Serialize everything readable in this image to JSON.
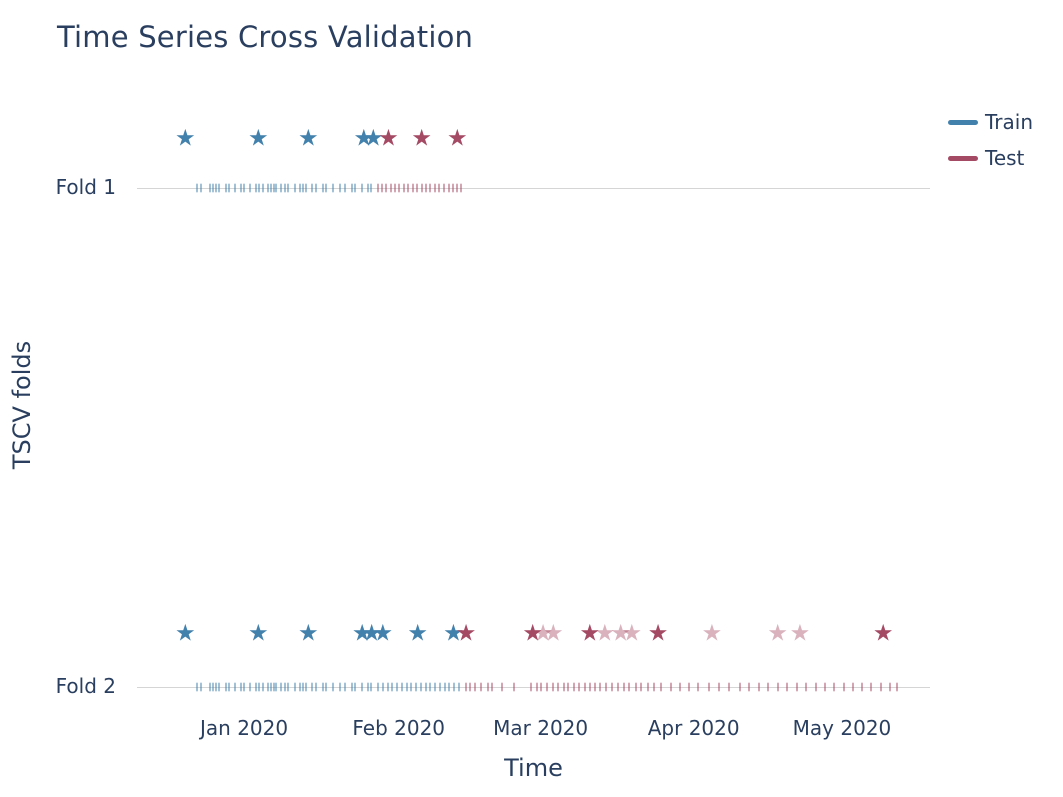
{
  "chart_data": {
    "type": "scatter",
    "title": "Time Series Cross Validation",
    "xlabel": "Time",
    "ylabel": "TSCV folds",
    "grid": false,
    "legend_position": "top-right",
    "x_axis": {
      "range": [
        "2019-12-11",
        "2020-05-18"
      ],
      "ticks": [
        {
          "label": "Jan 2020",
          "pos": 13.5
        },
        {
          "label": "Feb 2020",
          "pos": 33.0
        },
        {
          "label": "Mar 2020",
          "pos": 50.9
        },
        {
          "label": "Apr 2020",
          "pos": 70.2
        },
        {
          "label": "May 2020",
          "pos": 88.9
        }
      ]
    },
    "y_categories": [
      "Fold 1",
      "Fold 2"
    ],
    "legend": [
      {
        "label": "Train",
        "color": "#4381ad"
      },
      {
        "label": "Test",
        "color": "#a54a64"
      }
    ],
    "colors": {
      "train": "#4381ad",
      "test": "#a54a64",
      "text": "#2a3f5f",
      "axis_line": "#d5d5d5"
    },
    "folds": [
      {
        "label": "Fold 1",
        "train": {
          "window": [
            "2019-12-23",
            "2020-01-27"
          ],
          "stars": [
            {
              "date": "2019-12-21",
              "pos": 6.1
            },
            {
              "date": "2020-01-04",
              "pos": 15.3
            },
            {
              "date": "2020-01-14",
              "pos": 21.6
            },
            {
              "date": "2020-01-25",
              "pos": 28.6
            },
            {
              "date": "2020-01-27",
              "pos": 29.8
            }
          ],
          "rug": [
            7.6,
            8.1,
            9.2,
            9.6,
            10.0,
            10.3,
            11.2,
            11.6,
            12.4,
            13.1,
            13.5,
            14.2,
            15.0,
            15.4,
            15.9,
            16.5,
            16.9,
            17.3,
            17.5,
            18.2,
            18.7,
            19.0,
            19.9,
            20.6,
            20.9,
            21.3,
            22.1,
            22.6,
            23.5,
            23.8,
            24.7,
            25.6,
            26.2,
            27.1,
            27.5,
            28.4,
            29.1,
            29.5
          ]
        },
        "test": {
          "window": [
            "2020-01-28",
            "2020-02-14"
          ],
          "stars": [
            {
              "date": "2020-01-30",
              "pos": 31.7
            },
            {
              "date": "2020-02-06",
              "pos": 35.9
            },
            {
              "date": "2020-02-13",
              "pos": 40.4
            }
          ],
          "rug": [
            30.4,
            30.9,
            31.4,
            32.0,
            32.5,
            33.1,
            33.7,
            34.2,
            34.8,
            35.3,
            35.9,
            36.5,
            37.0,
            37.6,
            38.1,
            38.7,
            39.3,
            39.8,
            40.4,
            40.9
          ]
        }
      },
      {
        "label": "Fold 2",
        "train": {
          "window": [
            "2019-12-23",
            "2020-02-14"
          ],
          "stars": [
            {
              "date": "2019-12-21",
              "pos": 6.1
            },
            {
              "date": "2020-01-04",
              "pos": 15.3
            },
            {
              "date": "2020-01-14",
              "pos": 21.6
            },
            {
              "date": "2020-01-25",
              "pos": 28.4
            },
            {
              "date": "2020-01-27",
              "pos": 29.6
            },
            {
              "date": "2020-01-29",
              "pos": 31.0
            },
            {
              "date": "2020-02-05",
              "pos": 35.4
            },
            {
              "date": "2020-02-13",
              "pos": 39.9
            }
          ],
          "rug": [
            7.6,
            8.1,
            9.2,
            9.6,
            10.0,
            10.3,
            11.2,
            11.6,
            12.4,
            13.1,
            13.5,
            14.2,
            15.0,
            15.4,
            15.9,
            16.5,
            16.9,
            17.3,
            17.5,
            18.2,
            18.7,
            19.0,
            19.9,
            20.6,
            20.9,
            21.3,
            22.1,
            22.6,
            23.5,
            23.8,
            24.7,
            25.6,
            26.2,
            27.1,
            27.5,
            28.4,
            29.1,
            29.5,
            30.4,
            31.0,
            31.6,
            32.2,
            32.8,
            33.4,
            34.0,
            34.6,
            35.2,
            35.8,
            36.4,
            37.0,
            37.6,
            38.2,
            38.8,
            39.4,
            40.0,
            40.6
          ]
        },
        "test": {
          "window": [
            "2020-02-15",
            "2020-05-11"
          ],
          "stars": [
            {
              "date": "2020-02-15",
              "pos": 41.5
            },
            {
              "date": "2020-02-29",
              "pos": 49.9
            },
            {
              "date": "2020-03-02",
              "pos": 51.2,
              "muted": true
            },
            {
              "date": "2020-03-04",
              "pos": 52.5,
              "muted": true
            },
            {
              "date": "2020-03-11",
              "pos": 57.1
            },
            {
              "date": "2020-03-14",
              "pos": 59.0,
              "muted": true
            },
            {
              "date": "2020-03-17",
              "pos": 61.0,
              "muted": true
            },
            {
              "date": "2020-03-19",
              "pos": 62.4,
              "muted": true
            },
            {
              "date": "2020-03-25",
              "pos": 65.7
            },
            {
              "date": "2020-04-04",
              "pos": 72.5,
              "muted": true
            },
            {
              "date": "2020-04-17",
              "pos": 80.8,
              "muted": true
            },
            {
              "date": "2020-04-22",
              "pos": 83.6,
              "muted": true
            },
            {
              "date": "2020-05-09",
              "pos": 94.1
            }
          ],
          "rug": [
            41.5,
            42.0,
            42.6,
            43.4,
            44.2,
            44.8,
            46.0,
            47.6,
            49.7,
            50.4,
            51.0,
            51.7,
            52.5,
            53.1,
            53.8,
            54.4,
            55.1,
            55.7,
            56.5,
            57.1,
            57.8,
            58.4,
            59.1,
            59.9,
            60.6,
            61.4,
            62.1,
            62.9,
            63.6,
            64.4,
            65.2,
            66.1,
            67.3,
            68.5,
            69.6,
            70.8,
            72.1,
            73.4,
            74.7,
            76.0,
            77.2,
            78.4,
            79.6,
            80.8,
            82.0,
            83.2,
            84.4,
            85.6,
            86.7,
            87.9,
            89.1,
            90.3,
            91.4,
            92.6,
            93.8,
            94.9,
            95.9
          ]
        }
      }
    ]
  }
}
